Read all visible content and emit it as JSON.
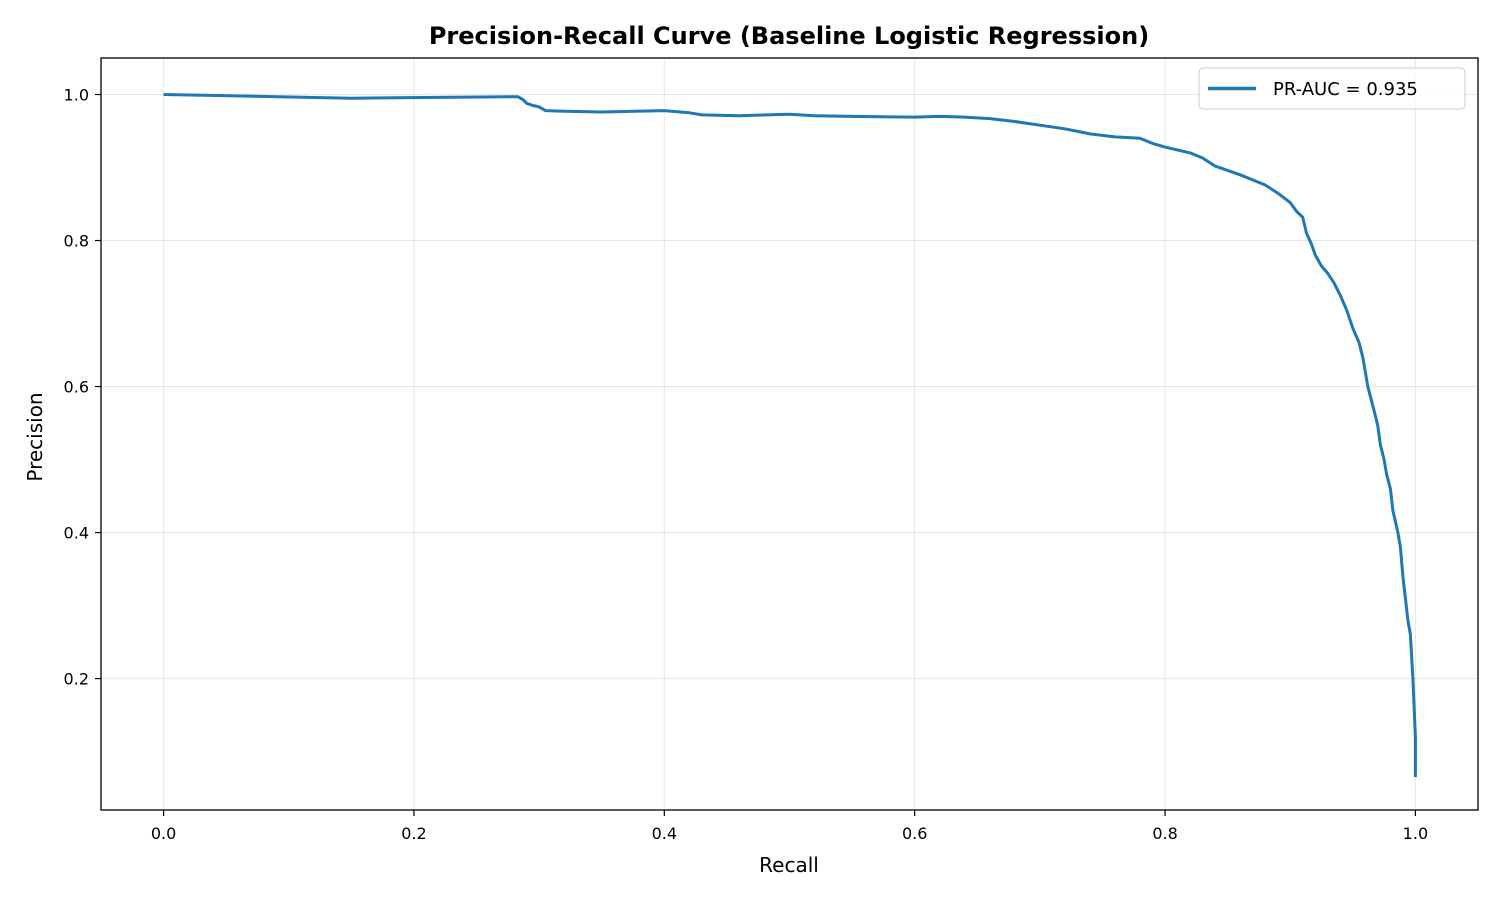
{
  "chart_data": {
    "type": "line",
    "title": "Precision-Recall Curve (Baseline Logistic Regression)",
    "xlabel": "Recall",
    "ylabel": "Precision",
    "xlim": [
      -0.05,
      1.05
    ],
    "ylim": [
      0.02,
      1.05
    ],
    "xticks": [
      "0.0",
      "0.2",
      "0.4",
      "0.6",
      "0.8",
      "1.0"
    ],
    "yticks": [
      "0.2",
      "0.4",
      "0.6",
      "0.8",
      "1.0"
    ],
    "xtick_values": [
      0.0,
      0.2,
      0.4,
      0.6,
      0.8,
      1.0
    ],
    "ytick_values": [
      0.2,
      0.4,
      0.6,
      0.8,
      1.0
    ],
    "grid": true,
    "legend_position": "top-right",
    "series": [
      {
        "name": "PR-AUC = 0.935",
        "color": "#1f77b4",
        "x": [
          0.0,
          0.15,
          0.28,
          0.283,
          0.287,
          0.29,
          0.295,
          0.3,
          0.305,
          0.32,
          0.35,
          0.4,
          0.42,
          0.43,
          0.46,
          0.5,
          0.52,
          0.55,
          0.6,
          0.62,
          0.64,
          0.66,
          0.68,
          0.7,
          0.72,
          0.74,
          0.76,
          0.78,
          0.79,
          0.8,
          0.82,
          0.83,
          0.84,
          0.86,
          0.88,
          0.89,
          0.9,
          0.905,
          0.91,
          0.913,
          0.917,
          0.92,
          0.925,
          0.93,
          0.935,
          0.94,
          0.945,
          0.95,
          0.955,
          0.958,
          0.96,
          0.962,
          0.965,
          0.968,
          0.97,
          0.972,
          0.975,
          0.977,
          0.98,
          0.982,
          0.984,
          0.986,
          0.988,
          0.99,
          0.992,
          0.994,
          0.996,
          0.998,
          1.0,
          1.0
        ],
        "y": [
          1.0,
          0.995,
          0.997,
          0.997,
          0.993,
          0.988,
          0.985,
          0.983,
          0.978,
          0.977,
          0.976,
          0.978,
          0.975,
          0.972,
          0.971,
          0.973,
          0.971,
          0.97,
          0.969,
          0.97,
          0.969,
          0.967,
          0.963,
          0.958,
          0.953,
          0.946,
          0.942,
          0.94,
          0.933,
          0.928,
          0.92,
          0.913,
          0.902,
          0.89,
          0.876,
          0.865,
          0.852,
          0.84,
          0.832,
          0.81,
          0.795,
          0.78,
          0.765,
          0.755,
          0.742,
          0.725,
          0.705,
          0.68,
          0.66,
          0.64,
          0.62,
          0.6,
          0.58,
          0.56,
          0.545,
          0.52,
          0.5,
          0.48,
          0.46,
          0.43,
          0.415,
          0.4,
          0.38,
          0.34,
          0.31,
          0.28,
          0.26,
          0.2,
          0.12,
          0.065
        ]
      }
    ]
  }
}
